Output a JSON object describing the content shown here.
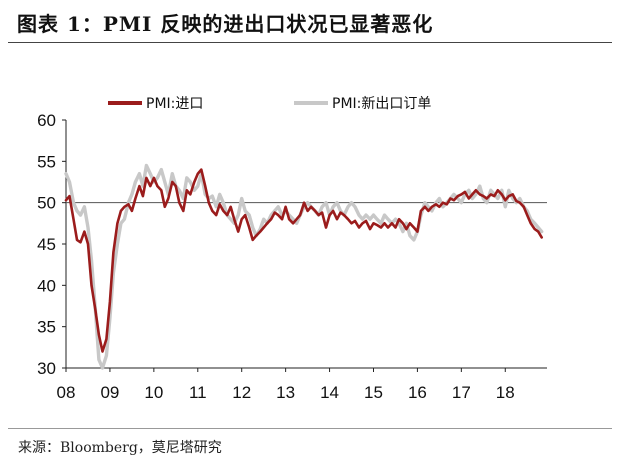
{
  "title": "图表 1：PMI 反映的进出口状况已显著恶化",
  "source": "来源：Bloomberg，莫尼塔研究",
  "chart_data": {
    "type": "line",
    "title": "图表 1：PMI 反映的进出口状况已显著恶化",
    "xlabel": "",
    "ylabel": "",
    "ylim": [
      30,
      60
    ],
    "yticks": [
      "30",
      "35",
      "40",
      "45",
      "50",
      "55",
      "60"
    ],
    "xlim": [
      2008.0,
      2018.95
    ],
    "xticks": [
      "08",
      "09",
      "10",
      "11",
      "12",
      "13",
      "14",
      "15",
      "16",
      "17",
      "18"
    ],
    "reference_line": 50,
    "grid": false,
    "legend_position": "top",
    "series": [
      {
        "name": "PMI:进口",
        "color": "#9b1c1c",
        "points": [
          [
            2008.0,
            50.3
          ],
          [
            2008.08,
            50.8
          ],
          [
            2008.17,
            48.0
          ],
          [
            2008.25,
            45.5
          ],
          [
            2008.33,
            45.2
          ],
          [
            2008.42,
            46.5
          ],
          [
            2008.5,
            45.0
          ],
          [
            2008.58,
            40.0
          ],
          [
            2008.67,
            37.0
          ],
          [
            2008.75,
            34.0
          ],
          [
            2008.83,
            32.0
          ],
          [
            2008.92,
            33.5
          ],
          [
            2009.0,
            38.0
          ],
          [
            2009.08,
            44.0
          ],
          [
            2009.17,
            47.5
          ],
          [
            2009.25,
            49.0
          ],
          [
            2009.33,
            49.5
          ],
          [
            2009.42,
            49.8
          ],
          [
            2009.5,
            49.0
          ],
          [
            2009.58,
            50.5
          ],
          [
            2009.67,
            52.0
          ],
          [
            2009.75,
            50.8
          ],
          [
            2009.83,
            53.0
          ],
          [
            2009.92,
            52.0
          ],
          [
            2010.0,
            53.0
          ],
          [
            2010.08,
            52.0
          ],
          [
            2010.17,
            51.5
          ],
          [
            2010.25,
            49.5
          ],
          [
            2010.33,
            50.5
          ],
          [
            2010.42,
            52.5
          ],
          [
            2010.5,
            52.0
          ],
          [
            2010.58,
            50.0
          ],
          [
            2010.67,
            49.0
          ],
          [
            2010.75,
            51.5
          ],
          [
            2010.83,
            51.0
          ],
          [
            2010.92,
            52.5
          ],
          [
            2011.0,
            53.5
          ],
          [
            2011.08,
            54.0
          ],
          [
            2011.17,
            52.0
          ],
          [
            2011.25,
            50.0
          ],
          [
            2011.33,
            49.0
          ],
          [
            2011.42,
            48.5
          ],
          [
            2011.5,
            49.8
          ],
          [
            2011.58,
            49.0
          ],
          [
            2011.67,
            48.5
          ],
          [
            2011.75,
            49.5
          ],
          [
            2011.83,
            48.0
          ],
          [
            2011.92,
            46.5
          ],
          [
            2012.0,
            48.0
          ],
          [
            2012.08,
            48.5
          ],
          [
            2012.17,
            47.0
          ],
          [
            2012.25,
            45.5
          ],
          [
            2012.33,
            46.0
          ],
          [
            2012.42,
            46.5
          ],
          [
            2012.5,
            47.0
          ],
          [
            2012.58,
            47.5
          ],
          [
            2012.67,
            48.0
          ],
          [
            2012.75,
            48.8
          ],
          [
            2012.83,
            48.5
          ],
          [
            2012.92,
            48.0
          ],
          [
            2013.0,
            49.5
          ],
          [
            2013.08,
            48.0
          ],
          [
            2013.17,
            47.5
          ],
          [
            2013.25,
            48.0
          ],
          [
            2013.33,
            48.5
          ],
          [
            2013.42,
            50.0
          ],
          [
            2013.5,
            49.0
          ],
          [
            2013.58,
            49.5
          ],
          [
            2013.67,
            49.0
          ],
          [
            2013.75,
            48.5
          ],
          [
            2013.83,
            48.8
          ],
          [
            2013.92,
            47.0
          ],
          [
            2014.0,
            48.5
          ],
          [
            2014.08,
            49.0
          ],
          [
            2014.17,
            48.0
          ],
          [
            2014.25,
            48.8
          ],
          [
            2014.33,
            48.5
          ],
          [
            2014.42,
            48.0
          ],
          [
            2014.5,
            47.5
          ],
          [
            2014.58,
            47.8
          ],
          [
            2014.67,
            47.0
          ],
          [
            2014.75,
            47.5
          ],
          [
            2014.83,
            47.8
          ],
          [
            2014.92,
            46.8
          ],
          [
            2015.0,
            47.5
          ],
          [
            2015.08,
            47.3
          ],
          [
            2015.17,
            47.0
          ],
          [
            2015.25,
            47.5
          ],
          [
            2015.33,
            47.0
          ],
          [
            2015.42,
            47.5
          ],
          [
            2015.5,
            47.0
          ],
          [
            2015.58,
            48.0
          ],
          [
            2015.67,
            47.5
          ],
          [
            2015.75,
            46.8
          ],
          [
            2015.83,
            47.5
          ],
          [
            2015.92,
            47.0
          ],
          [
            2016.0,
            46.5
          ],
          [
            2016.08,
            49.0
          ],
          [
            2016.17,
            49.5
          ],
          [
            2016.25,
            49.0
          ],
          [
            2016.33,
            49.5
          ],
          [
            2016.42,
            49.8
          ],
          [
            2016.5,
            49.5
          ],
          [
            2016.58,
            50.0
          ],
          [
            2016.67,
            49.8
          ],
          [
            2016.75,
            50.5
          ],
          [
            2016.83,
            50.3
          ],
          [
            2016.92,
            50.8
          ],
          [
            2017.0,
            51.0
          ],
          [
            2017.08,
            51.3
          ],
          [
            2017.17,
            50.5
          ],
          [
            2017.25,
            51.0
          ],
          [
            2017.33,
            51.5
          ],
          [
            2017.42,
            51.0
          ],
          [
            2017.5,
            50.8
          ],
          [
            2017.58,
            50.5
          ],
          [
            2017.67,
            51.0
          ],
          [
            2017.75,
            50.8
          ],
          [
            2017.83,
            51.5
          ],
          [
            2017.92,
            51.0
          ],
          [
            2018.0,
            50.3
          ],
          [
            2018.08,
            50.8
          ],
          [
            2018.17,
            51.0
          ],
          [
            2018.25,
            50.2
          ],
          [
            2018.33,
            50.0
          ],
          [
            2018.42,
            49.5
          ],
          [
            2018.5,
            48.5
          ],
          [
            2018.58,
            47.5
          ],
          [
            2018.67,
            46.8
          ],
          [
            2018.75,
            46.5
          ],
          [
            2018.83,
            45.8
          ]
        ]
      },
      {
        "name": "PMI:新出口订单",
        "color": "#c8c8c8",
        "points": [
          [
            2008.0,
            53.5
          ],
          [
            2008.08,
            52.5
          ],
          [
            2008.17,
            50.0
          ],
          [
            2008.25,
            49.0
          ],
          [
            2008.33,
            48.5
          ],
          [
            2008.42,
            49.5
          ],
          [
            2008.5,
            47.0
          ],
          [
            2008.58,
            43.0
          ],
          [
            2008.67,
            37.0
          ],
          [
            2008.75,
            31.0
          ],
          [
            2008.83,
            30.0
          ],
          [
            2008.92,
            31.5
          ],
          [
            2009.0,
            36.0
          ],
          [
            2009.08,
            41.5
          ],
          [
            2009.17,
            45.0
          ],
          [
            2009.25,
            47.5
          ],
          [
            2009.33,
            48.0
          ],
          [
            2009.42,
            50.0
          ],
          [
            2009.5,
            51.0
          ],
          [
            2009.58,
            52.5
          ],
          [
            2009.67,
            53.5
          ],
          [
            2009.75,
            52.0
          ],
          [
            2009.83,
            54.5
          ],
          [
            2009.92,
            53.5
          ],
          [
            2010.0,
            52.5
          ],
          [
            2010.08,
            53.0
          ],
          [
            2010.17,
            54.0
          ],
          [
            2010.25,
            52.5
          ],
          [
            2010.33,
            51.0
          ],
          [
            2010.42,
            53.5
          ],
          [
            2010.5,
            52.0
          ],
          [
            2010.58,
            51.5
          ],
          [
            2010.67,
            50.5
          ],
          [
            2010.75,
            53.0
          ],
          [
            2010.83,
            52.5
          ],
          [
            2010.92,
            51.5
          ],
          [
            2011.0,
            52.0
          ],
          [
            2011.08,
            53.5
          ],
          [
            2011.17,
            51.0
          ],
          [
            2011.25,
            50.5
          ],
          [
            2011.33,
            50.8
          ],
          [
            2011.42,
            49.5
          ],
          [
            2011.5,
            51.0
          ],
          [
            2011.58,
            50.0
          ],
          [
            2011.67,
            48.5
          ],
          [
            2011.75,
            48.0
          ],
          [
            2011.83,
            47.5
          ],
          [
            2011.92,
            48.5
          ],
          [
            2012.0,
            50.5
          ],
          [
            2012.08,
            49.0
          ],
          [
            2012.17,
            48.5
          ],
          [
            2012.25,
            47.0
          ],
          [
            2012.33,
            46.0
          ],
          [
            2012.42,
            46.8
          ],
          [
            2012.5,
            48.0
          ],
          [
            2012.58,
            47.5
          ],
          [
            2012.67,
            48.5
          ],
          [
            2012.75,
            49.0
          ],
          [
            2012.83,
            49.5
          ],
          [
            2012.92,
            48.5
          ],
          [
            2013.0,
            49.0
          ],
          [
            2013.08,
            48.5
          ],
          [
            2013.17,
            48.0
          ],
          [
            2013.25,
            47.5
          ],
          [
            2013.33,
            48.5
          ],
          [
            2013.42,
            49.5
          ],
          [
            2013.5,
            50.0
          ],
          [
            2013.58,
            49.5
          ],
          [
            2013.67,
            49.0
          ],
          [
            2013.75,
            48.5
          ],
          [
            2013.83,
            49.5
          ],
          [
            2013.92,
            50.0
          ],
          [
            2014.0,
            48.5
          ],
          [
            2014.08,
            49.5
          ],
          [
            2014.17,
            50.0
          ],
          [
            2014.25,
            49.0
          ],
          [
            2014.33,
            48.5
          ],
          [
            2014.42,
            49.5
          ],
          [
            2014.5,
            50.0
          ],
          [
            2014.58,
            49.5
          ],
          [
            2014.67,
            48.5
          ],
          [
            2014.75,
            48.0
          ],
          [
            2014.83,
            48.5
          ],
          [
            2014.92,
            48.0
          ],
          [
            2015.0,
            48.5
          ],
          [
            2015.08,
            48.0
          ],
          [
            2015.17,
            47.5
          ],
          [
            2015.25,
            48.5
          ],
          [
            2015.33,
            48.0
          ],
          [
            2015.42,
            47.5
          ],
          [
            2015.5,
            48.0
          ],
          [
            2015.58,
            47.5
          ],
          [
            2015.67,
            46.5
          ],
          [
            2015.75,
            47.5
          ],
          [
            2015.83,
            46.0
          ],
          [
            2015.92,
            45.5
          ],
          [
            2016.0,
            46.5
          ],
          [
            2016.08,
            48.5
          ],
          [
            2016.17,
            50.0
          ],
          [
            2016.25,
            49.5
          ],
          [
            2016.33,
            49.0
          ],
          [
            2016.42,
            50.0
          ],
          [
            2016.5,
            50.5
          ],
          [
            2016.58,
            49.5
          ],
          [
            2016.67,
            50.0
          ],
          [
            2016.75,
            50.5
          ],
          [
            2016.83,
            51.0
          ],
          [
            2016.92,
            50.5
          ],
          [
            2017.0,
            50.0
          ],
          [
            2017.08,
            51.0
          ],
          [
            2017.17,
            51.5
          ],
          [
            2017.25,
            50.5
          ],
          [
            2017.33,
            51.0
          ],
          [
            2017.42,
            52.0
          ],
          [
            2017.5,
            50.5
          ],
          [
            2017.58,
            50.0
          ],
          [
            2017.67,
            51.5
          ],
          [
            2017.75,
            51.0
          ],
          [
            2017.83,
            50.5
          ],
          [
            2017.92,
            51.5
          ],
          [
            2018.0,
            49.5
          ],
          [
            2018.08,
            51.5
          ],
          [
            2018.17,
            50.5
          ],
          [
            2018.25,
            50.0
          ],
          [
            2018.33,
            50.5
          ],
          [
            2018.42,
            49.5
          ],
          [
            2018.5,
            49.0
          ],
          [
            2018.58,
            48.0
          ],
          [
            2018.67,
            47.5
          ],
          [
            2018.75,
            47.0
          ],
          [
            2018.83,
            46.5
          ]
        ]
      }
    ]
  }
}
